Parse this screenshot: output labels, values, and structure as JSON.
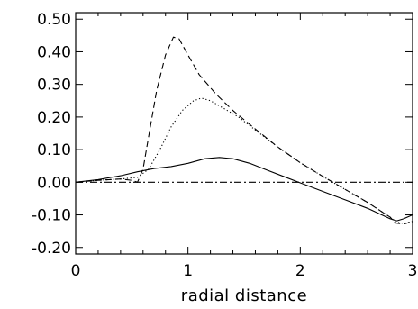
{
  "chart_data": {
    "type": "line",
    "title": "",
    "xlabel": "radial distance",
    "ylabel": "",
    "xlim": [
      0,
      3
    ],
    "ylim": [
      -0.22,
      0.52
    ],
    "grid": false,
    "legend": "none",
    "x_ticks": [
      {
        "value": 0,
        "label": "0"
      },
      {
        "value": 1,
        "label": "1"
      },
      {
        "value": 2,
        "label": "2"
      },
      {
        "value": 3,
        "label": "3"
      }
    ],
    "y_ticks": [
      {
        "value": 0.5,
        "label": "0.50"
      },
      {
        "value": 0.4,
        "label": "0.40"
      },
      {
        "value": 0.3,
        "label": "0.30"
      },
      {
        "value": 0.2,
        "label": "0.20"
      },
      {
        "value": 0.1,
        "label": "0.10"
      },
      {
        "value": 0.0,
        "label": "0.00"
      },
      {
        "value": -0.1,
        "label": "-0.10"
      },
      {
        "value": -0.2,
        "label": "-0.20"
      }
    ],
    "series": [
      {
        "style": "solid",
        "x": [
          0,
          0.2,
          0.4,
          0.55,
          0.7,
          0.85,
          1.0,
          1.15,
          1.28,
          1.4,
          1.55,
          1.7,
          1.85,
          2.0,
          2.2,
          2.4,
          2.6,
          2.8,
          2.86,
          2.92,
          3.0
        ],
        "y": [
          0,
          0.008,
          0.02,
          0.032,
          0.042,
          0.048,
          0.058,
          0.072,
          0.076,
          0.072,
          0.058,
          0.038,
          0.018,
          -0.002,
          -0.028,
          -0.054,
          -0.08,
          -0.112,
          -0.118,
          -0.112,
          -0.1
        ]
      },
      {
        "style": "dashed",
        "x": [
          0,
          0.2,
          0.4,
          0.5,
          0.55,
          0.6,
          0.65,
          0.72,
          0.8,
          0.87,
          0.92,
          1.0,
          1.1,
          1.25,
          1.4,
          1.6,
          1.8,
          2.0,
          2.2,
          2.4,
          2.6,
          2.8,
          2.85,
          2.92,
          3.0
        ],
        "y": [
          0,
          0.006,
          0.01,
          0.006,
          0.0,
          0.04,
          0.14,
          0.28,
          0.39,
          0.445,
          0.44,
          0.39,
          0.33,
          0.27,
          0.22,
          0.163,
          0.108,
          0.06,
          0.018,
          -0.022,
          -0.062,
          -0.107,
          -0.125,
          -0.128,
          -0.12
        ]
      },
      {
        "style": "dotted",
        "x": [
          0,
          0.2,
          0.4,
          0.55,
          0.65,
          0.75,
          0.85,
          0.95,
          1.05,
          1.12,
          1.2,
          1.3,
          1.45,
          1.6,
          1.8,
          2.0,
          2.2,
          2.4,
          2.6,
          2.8,
          2.85,
          2.92,
          3.0
        ],
        "y": [
          0,
          0.006,
          0.01,
          0.015,
          0.04,
          0.1,
          0.17,
          0.22,
          0.25,
          0.258,
          0.25,
          0.23,
          0.2,
          0.16,
          0.108,
          0.06,
          0.018,
          -0.022,
          -0.062,
          -0.107,
          -0.122,
          -0.126,
          -0.12
        ]
      },
      {
        "style": "dash-dot",
        "x": [
          0,
          3
        ],
        "y": [
          0,
          0
        ]
      }
    ]
  }
}
